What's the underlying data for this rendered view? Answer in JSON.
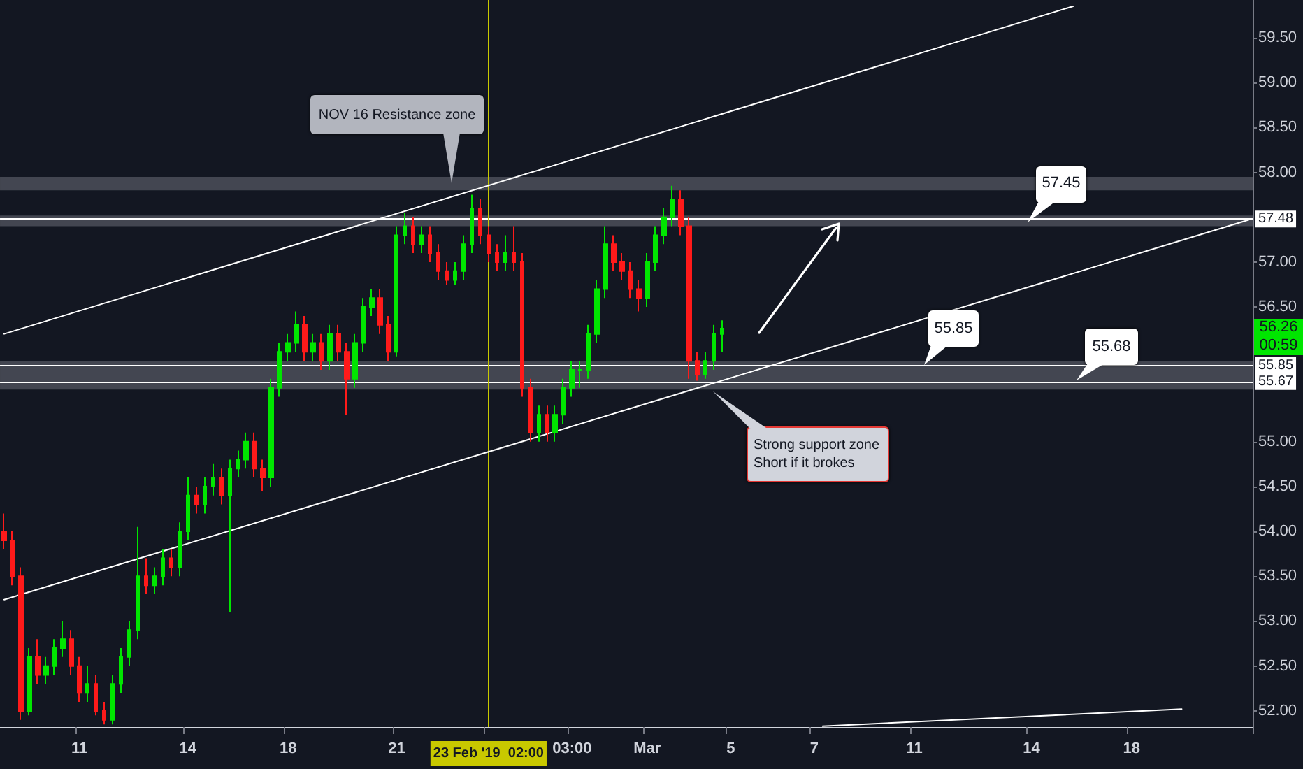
{
  "chart_data": {
    "type": "candlestick",
    "categories": [
      null,
      null,
      null,
      null,
      null,
      null,
      null,
      null,
      null,
      "11",
      null,
      null,
      null,
      null,
      null,
      null,
      null,
      null,
      null,
      null,
      null,
      null,
      "14",
      null,
      null,
      null,
      null,
      null,
      null,
      null,
      null,
      null,
      null,
      null,
      "18",
      null,
      null,
      null,
      null,
      null,
      null,
      null,
      null,
      null,
      null,
      null,
      null,
      "21",
      null,
      null,
      null,
      null,
      null,
      null,
      null,
      null,
      null,
      null,
      "23 Feb '19  02:00",
      null,
      null,
      null,
      null,
      null,
      null,
      null,
      null,
      null,
      "03:00",
      null,
      null,
      null,
      null,
      null,
      null,
      null,
      null,
      "Mar",
      null,
      null,
      null,
      null,
      null,
      null,
      null,
      null,
      null,
      "5",
      null,
      null,
      null,
      null,
      null,
      null,
      null,
      null,
      null,
      "7",
      null,
      null,
      null,
      null,
      null,
      null,
      null,
      null,
      null,
      null,
      null,
      "11",
      null,
      null,
      null,
      null,
      null,
      null,
      null,
      null,
      null,
      null,
      null,
      null,
      null,
      "14",
      null,
      null,
      null,
      null,
      null,
      null,
      null,
      null,
      null,
      null,
      null,
      "18",
      null,
      null,
      null,
      null,
      null,
      null,
      null,
      null,
      null,
      null,
      null,
      null,
      null,
      null
    ],
    "ohlc": [
      [
        54.0,
        54.2,
        53.8,
        53.9
      ],
      [
        53.9,
        54.0,
        53.4,
        53.5
      ],
      [
        53.5,
        53.6,
        51.9,
        52.0
      ],
      [
        52.0,
        52.7,
        51.95,
        52.6
      ],
      [
        52.6,
        52.8,
        52.3,
        52.4
      ],
      [
        52.4,
        52.6,
        52.3,
        52.5
      ],
      [
        52.5,
        52.8,
        52.4,
        52.7
      ],
      [
        52.7,
        53.0,
        52.6,
        52.8
      ],
      [
        52.8,
        52.9,
        52.4,
        52.5
      ],
      [
        52.5,
        52.6,
        52.1,
        52.2
      ],
      [
        52.2,
        52.5,
        52.1,
        52.3
      ],
      [
        52.3,
        52.4,
        51.95,
        52.0
      ],
      [
        52.0,
        52.1,
        51.85,
        51.9
      ],
      [
        51.9,
        52.4,
        51.85,
        52.3
      ],
      [
        52.3,
        52.7,
        52.2,
        52.6
      ],
      [
        52.6,
        53.0,
        52.5,
        52.9
      ],
      [
        52.9,
        54.05,
        52.8,
        53.5
      ],
      [
        53.5,
        53.7,
        53.3,
        53.4
      ],
      [
        53.4,
        53.6,
        53.3,
        53.5
      ],
      [
        53.5,
        53.8,
        53.4,
        53.7
      ],
      [
        53.7,
        53.8,
        53.5,
        53.6
      ],
      [
        53.6,
        54.1,
        53.5,
        54.0
      ],
      [
        54.0,
        54.6,
        53.9,
        54.4
      ],
      [
        54.4,
        54.5,
        54.2,
        54.3
      ],
      [
        54.3,
        54.6,
        54.2,
        54.5
      ],
      [
        54.5,
        54.75,
        54.4,
        54.6
      ],
      [
        54.6,
        54.7,
        54.3,
        54.4
      ],
      [
        54.4,
        54.8,
        53.1,
        54.7
      ],
      [
        54.7,
        54.9,
        54.6,
        54.8
      ],
      [
        54.8,
        55.1,
        54.7,
        55.0
      ],
      [
        55.0,
        55.1,
        54.6,
        54.7
      ],
      [
        54.7,
        54.8,
        54.45,
        54.6
      ],
      [
        54.6,
        55.7,
        54.5,
        55.6
      ],
      [
        55.6,
        56.1,
        55.5,
        56.0
      ],
      [
        56.0,
        56.2,
        55.9,
        56.1
      ],
      [
        56.1,
        56.45,
        56.0,
        56.3
      ],
      [
        56.3,
        56.4,
        55.9,
        56.0
      ],
      [
        56.0,
        56.2,
        55.9,
        56.1
      ],
      [
        56.1,
        56.2,
        55.8,
        55.9
      ],
      [
        55.9,
        56.3,
        55.8,
        56.2
      ],
      [
        56.2,
        56.3,
        55.9,
        56.0
      ],
      [
        56.0,
        56.1,
        55.3,
        55.7
      ],
      [
        55.7,
        56.2,
        55.6,
        56.1
      ],
      [
        56.1,
        56.6,
        56.0,
        56.5
      ],
      [
        56.5,
        56.7,
        56.4,
        56.6
      ],
      [
        56.6,
        56.7,
        56.2,
        56.3
      ],
      [
        56.3,
        56.4,
        55.9,
        56.0
      ],
      [
        56.0,
        57.4,
        55.95,
        57.3
      ],
      [
        57.3,
        57.55,
        57.2,
        57.4
      ],
      [
        57.4,
        57.5,
        57.1,
        57.2
      ],
      [
        57.2,
        57.4,
        57.1,
        57.3
      ],
      [
        57.3,
        57.4,
        57.0,
        57.1
      ],
      [
        57.1,
        57.2,
        56.8,
        56.9
      ],
      [
        56.9,
        57.0,
        56.75,
        56.8
      ],
      [
        56.8,
        57.0,
        56.75,
        56.9
      ],
      [
        56.9,
        57.3,
        56.8,
        57.2
      ],
      [
        57.2,
        57.75,
        57.1,
        57.6
      ],
      [
        57.6,
        57.7,
        57.2,
        57.3
      ],
      [
        57.3,
        57.4,
        57.0,
        57.1
      ],
      [
        57.1,
        57.2,
        56.9,
        57.0
      ],
      [
        57.0,
        57.3,
        56.9,
        57.1
      ],
      [
        57.1,
        57.4,
        56.9,
        57.0
      ],
      [
        57.0,
        57.1,
        55.5,
        55.6
      ],
      [
        55.6,
        55.7,
        55.0,
        55.1
      ],
      [
        55.1,
        55.4,
        55.0,
        55.3
      ],
      [
        55.3,
        55.4,
        55.0,
        55.1
      ],
      [
        55.1,
        55.4,
        55.0,
        55.3
      ],
      [
        55.3,
        55.7,
        55.2,
        55.6
      ],
      [
        55.6,
        55.9,
        55.5,
        55.8
      ],
      [
        55.8,
        55.9,
        55.6,
        55.8
      ],
      [
        55.8,
        56.3,
        55.7,
        56.2
      ],
      [
        56.2,
        56.8,
        56.1,
        56.7
      ],
      [
        56.7,
        57.4,
        56.6,
        57.2
      ],
      [
        57.2,
        57.3,
        56.9,
        57.0
      ],
      [
        57.0,
        57.1,
        56.8,
        56.9
      ],
      [
        56.9,
        57.0,
        56.6,
        56.7
      ],
      [
        56.7,
        56.8,
        56.45,
        56.6
      ],
      [
        56.6,
        57.1,
        56.5,
        57.0
      ],
      [
        57.0,
        57.4,
        56.9,
        57.3
      ],
      [
        57.3,
        57.6,
        57.2,
        57.5
      ],
      [
        57.5,
        57.85,
        57.4,
        57.7
      ],
      [
        57.7,
        57.8,
        57.3,
        57.4
      ],
      [
        57.4,
        57.5,
        55.7,
        55.9
      ],
      [
        55.9,
        56.0,
        55.68,
        55.75
      ],
      [
        55.75,
        56.0,
        55.7,
        55.9
      ],
      [
        55.9,
        56.3,
        55.8,
        56.2
      ],
      [
        56.2,
        56.35,
        56.0,
        56.26
      ],
      null,
      null,
      null,
      null,
      null,
      null,
      null,
      null,
      null,
      null,
      null,
      null,
      null,
      null,
      null,
      null,
      null,
      null,
      null,
      null,
      null,
      null,
      null,
      null,
      null,
      null,
      null,
      null,
      null,
      null,
      null,
      null,
      null,
      null,
      null,
      null,
      null,
      null,
      null,
      null,
      null,
      null,
      null,
      null,
      null,
      null,
      null,
      null,
      null,
      null,
      null,
      null,
      null,
      null,
      null,
      null,
      null,
      null,
      null,
      null,
      null,
      null,
      null
    ],
    "series": [
      {
        "type": "line",
        "color": "#ffffff",
        "marker": "none",
        "values": [
          56.2,
          null,
          null,
          null,
          null,
          null,
          null,
          null,
          null,
          null,
          null,
          null,
          null,
          null,
          null,
          null,
          null,
          null,
          null,
          null,
          null,
          null,
          null,
          null,
          null,
          null,
          null,
          null,
          null,
          null,
          null,
          null,
          null,
          null,
          null,
          null,
          null,
          null,
          null,
          null,
          null,
          null,
          null,
          null,
          null,
          null,
          null,
          null,
          null,
          null,
          null,
          null,
          null,
          null,
          null,
          null,
          null,
          null,
          null,
          null,
          null,
          null,
          null,
          null,
          null,
          null,
          null,
          null,
          null,
          null,
          null,
          null,
          null,
          null,
          null,
          null,
          null,
          null,
          null,
          null,
          null,
          null,
          null,
          null,
          null,
          null,
          null,
          null,
          null,
          null,
          null,
          null,
          null,
          null,
          null,
          null,
          null,
          null,
          null,
          null,
          null,
          null,
          null,
          null,
          null,
          null,
          null,
          null,
          null,
          null,
          null,
          null,
          null,
          null,
          null,
          null,
          null,
          null,
          null,
          null,
          null,
          null,
          null,
          null,
          null,
          null,
          null,
          null,
          59.85,
          null,
          null,
          null,
          null,
          null,
          null,
          null,
          null,
          null,
          null,
          null,
          null,
          null,
          null,
          null,
          null,
          null,
          null,
          null,
          null,
          null
        ]
      },
      {
        "type": "line",
        "color": "#ffffff",
        "marker": "none",
        "values": [
          53.24,
          null,
          null,
          null,
          null,
          null,
          null,
          null,
          null,
          null,
          null,
          null,
          null,
          null,
          null,
          null,
          null,
          null,
          null,
          null,
          null,
          null,
          null,
          null,
          null,
          null,
          null,
          null,
          null,
          null,
          null,
          null,
          null,
          null,
          null,
          null,
          null,
          null,
          null,
          null,
          null,
          null,
          null,
          null,
          null,
          null,
          null,
          null,
          null,
          null,
          null,
          null,
          null,
          null,
          null,
          null,
          null,
          null,
          null,
          null,
          null,
          null,
          null,
          null,
          null,
          null,
          null,
          null,
          null,
          null,
          null,
          null,
          null,
          null,
          null,
          null,
          null,
          null,
          null,
          null,
          null,
          null,
          null,
          null,
          null,
          null,
          null,
          null,
          null,
          null,
          null,
          null,
          null,
          null,
          null,
          null,
          null,
          null,
          null,
          null,
          null,
          null,
          null,
          null,
          null,
          null,
          null,
          null,
          null,
          null,
          null,
          null,
          null,
          null,
          null,
          null,
          null,
          null,
          null,
          null,
          null,
          null,
          null,
          null,
          null,
          null,
          null,
          null,
          null,
          null,
          null,
          null,
          null,
          null,
          null,
          null,
          null,
          null,
          null,
          null,
          null,
          null,
          null,
          null,
          null,
          null,
          null,
          null,
          null,
          57.47
        ]
      },
      {
        "type": "line",
        "color": "#ffffff",
        "marker": "none",
        "values": [
          null,
          null,
          null,
          null,
          null,
          null,
          null,
          null,
          null,
          null,
          null,
          null,
          null,
          null,
          null,
          null,
          null,
          null,
          null,
          null,
          null,
          null,
          null,
          null,
          null,
          null,
          null,
          null,
          null,
          null,
          null,
          null,
          null,
          null,
          null,
          null,
          null,
          null,
          null,
          null,
          null,
          null,
          null,
          null,
          null,
          null,
          null,
          null,
          null,
          null,
          null,
          null,
          null,
          null,
          null,
          null,
          null,
          null,
          null,
          null,
          null,
          null,
          null,
          null,
          null,
          null,
          null,
          null,
          null,
          null,
          null,
          null,
          null,
          null,
          null,
          null,
          null,
          null,
          null,
          null,
          null,
          null,
          null,
          null,
          null,
          null,
          null,
          null,
          null,
          null,
          null,
          null,
          null,
          null,
          null,
          null,
          null,
          null,
          51.83,
          null,
          null,
          null,
          null,
          null,
          null,
          null,
          null,
          null,
          null,
          null,
          null,
          null,
          null,
          null,
          null,
          null,
          null,
          null,
          null,
          null,
          null,
          null,
          null,
          null,
          null,
          null,
          null,
          null,
          null,
          null,
          null,
          null,
          null,
          null,
          null,
          null,
          null,
          null,
          null,
          null,
          null,
          52.02,
          null,
          null,
          null,
          null,
          null,
          null,
          null,
          null
        ]
      }
    ],
    "ylim": [
      51.82,
      59.92
    ],
    "yticks": [
      {
        "value": 52,
        "label": "52.00"
      },
      {
        "value": 52.5,
        "label": "52.50"
      },
      {
        "value": 53,
        "label": "53.00"
      },
      {
        "value": 53.5,
        "label": "53.50"
      },
      {
        "value": 54,
        "label": "54.00"
      },
      {
        "value": 54.5,
        "label": "54.50"
      },
      {
        "value": 55,
        "label": "55.00"
      },
      {
        "value": 56.5,
        "label": "56.50"
      },
      {
        "value": 57,
        "label": "57.00"
      },
      {
        "value": 58,
        "label": "58.00"
      },
      {
        "value": 58.5,
        "label": "58.50"
      },
      {
        "value": 59,
        "label": "59.00"
      },
      {
        "value": 59.5,
        "label": "59.50"
      }
    ],
    "ref_lines": [
      {
        "axis": "y",
        "value": 57.48,
        "label": "57.48",
        "color": "#ffffff"
      },
      {
        "axis": "y",
        "value": 55.85,
        "label": "55.85",
        "color": "#ffffff"
      },
      {
        "axis": "y",
        "value": 55.67,
        "label": "55.67",
        "color": "#ffffff"
      },
      {
        "axis": "x",
        "value": "23 Feb '19  02:00",
        "color": "#c8c800"
      }
    ],
    "bands": [
      {
        "axis": "y",
        "from": 57.8,
        "to": 57.95,
        "color": "#4c4f59"
      },
      {
        "axis": "y",
        "from": 57.4,
        "to": 57.52,
        "color": "#4c4f59"
      },
      {
        "axis": "y",
        "from": 55.58,
        "to": 55.9,
        "color": "#4c4f59"
      }
    ],
    "annotations": [
      "NOV 16 Resistance zone",
      "Strong support zone Short if it brokes",
      {
        "text": "57.45",
        "y": 57.45
      },
      {
        "text": "55.85",
        "y": 55.85
      },
      {
        "text": "55.68",
        "y": 55.68
      },
      {
        "text": "56.26",
        "y": 56.26
      },
      "00:59"
    ],
    "grid": false
  }
}
